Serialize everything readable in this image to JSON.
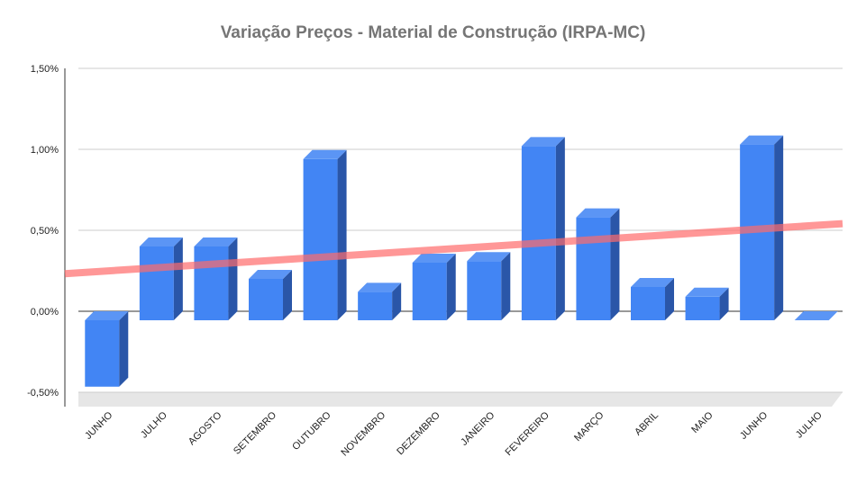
{
  "chart_data": {
    "type": "bar",
    "title": "Variação Preços - Material de Construção (IRPA-MC)",
    "xlabel": "",
    "ylabel": "",
    "categories": [
      "JUNHO",
      "JULHO",
      "AGOSTO",
      "SETEMBRO",
      "OUTUBRO",
      "NOVEMBRO",
      "DEZEMBRO",
      "JANEIRO",
      "FEVEREIRO",
      "MARÇO",
      "ABRIL",
      "MAIO",
      "JUNHO",
      "JULHO"
    ],
    "series": [
      {
        "values": [
          -0.41,
          0.4,
          0.4,
          0.2,
          0.94,
          0.12,
          0.3,
          0.31,
          1.02,
          0.58,
          0.15,
          0.09,
          1.03,
          0.0
        ]
      }
    ],
    "trendline": {
      "start": 0.21,
      "end": 0.53
    },
    "ylim": [
      -0.5,
      1.5
    ],
    "yticks": [
      "1,50%",
      "1,00%",
      "0,50%",
      "0,00%",
      "-0,50%"
    ],
    "ytick_values": [
      1.5,
      1.0,
      0.5,
      0.0,
      -0.5
    ],
    "grid": true,
    "legend": "none",
    "style": "3d",
    "colors": {
      "bar_front": "#4285f4",
      "bar_top": "#5b95f5",
      "bar_side": "#2a56a8",
      "trendline": "#ff6b6b",
      "gridline": "#cccccc",
      "floor": "#e6e6e6",
      "title": "#757575"
    }
  }
}
